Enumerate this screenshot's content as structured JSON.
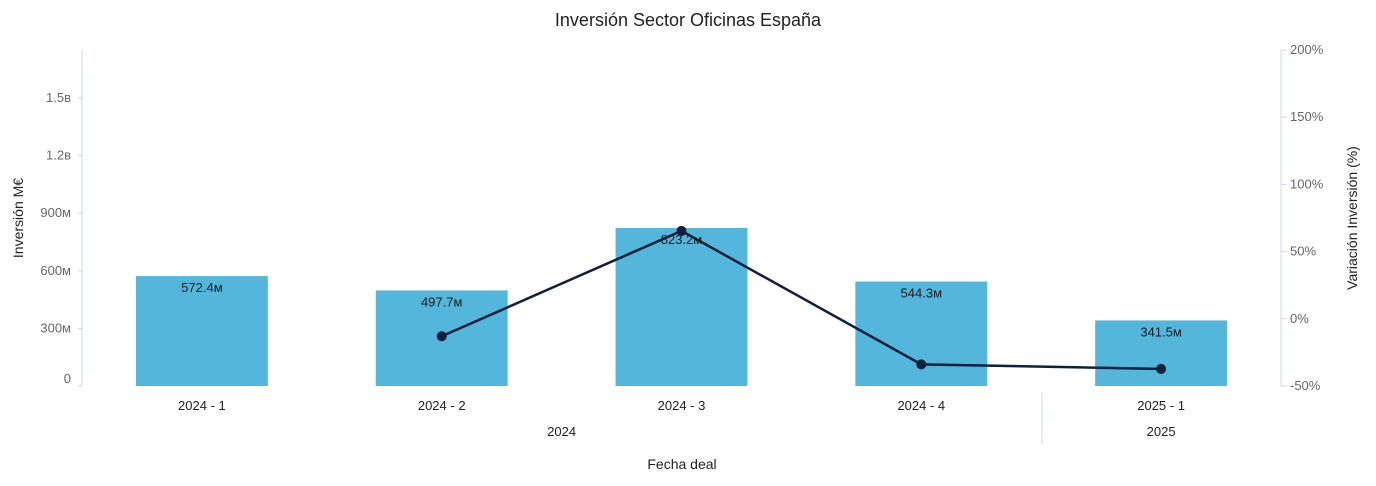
{
  "chart_data": {
    "type": "bar",
    "title": "Inversión Sector Oficinas España",
    "xlabel": "Fecha deal",
    "ylabel": "Inversión M€",
    "y2label": "Variación Inversión (%)",
    "categories": [
      "2024 - 1",
      "2024 - 2",
      "2024 - 3",
      "2024 - 4",
      "2025 - 1"
    ],
    "groups": [
      {
        "label": "2024",
        "span": [
          0,
          3
        ]
      },
      {
        "label": "2025",
        "span": [
          4,
          4
        ]
      }
    ],
    "series": [
      {
        "type": "bar",
        "axis": "left",
        "values": [
          572.4,
          497.7,
          823.2,
          544.3,
          341.5
        ],
        "labels": [
          "572.4м",
          "497.7м",
          "823.2м",
          "544.3м",
          "341.5м"
        ],
        "color": "#53b6da"
      },
      {
        "type": "line",
        "axis": "right",
        "values": [
          null,
          -13.0,
          65.4,
          -33.9,
          -37.3
        ],
        "color": "#0f1f3d"
      }
    ],
    "ylim": [
      0,
      1750
    ],
    "yticks": [
      {
        "value": 0,
        "label": "0"
      },
      {
        "value": 300,
        "label": "300м"
      },
      {
        "value": 600,
        "label": "600м"
      },
      {
        "value": 900,
        "label": "900м"
      },
      {
        "value": 1200,
        "label": "1.2в"
      },
      {
        "value": 1500,
        "label": "1.5в"
      }
    ],
    "y2lim": [
      -50,
      200
    ],
    "y2ticks": [
      {
        "value": -50,
        "label": "-50%"
      },
      {
        "value": 0,
        "label": "0%"
      },
      {
        "value": 50,
        "label": "50%"
      },
      {
        "value": 100,
        "label": "100%"
      },
      {
        "value": 150,
        "label": "150%"
      },
      {
        "value": 200,
        "label": "200%"
      }
    ],
    "grid": false,
    "legend": "none"
  }
}
